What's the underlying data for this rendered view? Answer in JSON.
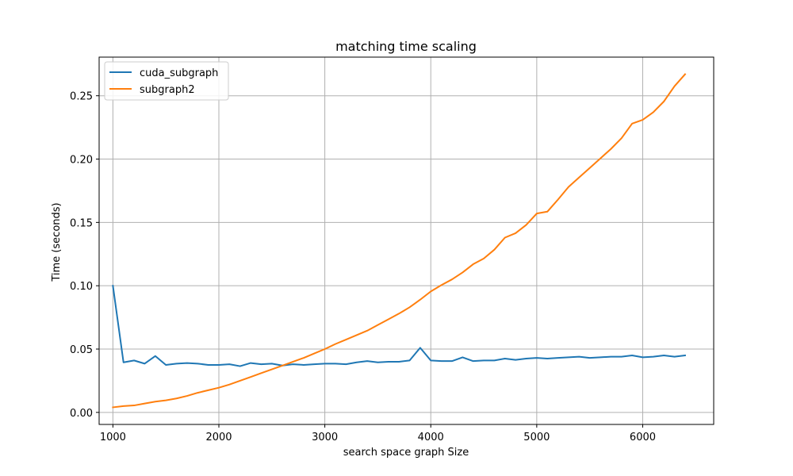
{
  "chart_data": {
    "type": "line",
    "title": "matching time scaling",
    "xlabel": "search space graph Size",
    "ylabel": "Time (seconds)",
    "xlim": [
      870,
      6670
    ],
    "ylim": [
      -0.0095,
      0.2805
    ],
    "xticks": [
      1000,
      2000,
      3000,
      4000,
      5000,
      6000
    ],
    "xtick_labels": [
      "1000",
      "2000",
      "3000",
      "4000",
      "5000",
      "6000"
    ],
    "yticks": [
      0.0,
      0.05,
      0.1,
      0.15,
      0.2,
      0.25
    ],
    "ytick_labels": [
      "0.00",
      "0.05",
      "0.10",
      "0.15",
      "0.20",
      "0.25"
    ],
    "grid": true,
    "legend_position": "top-left",
    "x": [
      1000,
      1100,
      1200,
      1300,
      1400,
      1500,
      1600,
      1700,
      1800,
      1900,
      2000,
      2100,
      2200,
      2300,
      2400,
      2500,
      2600,
      2700,
      2800,
      2900,
      3000,
      3100,
      3200,
      3300,
      3400,
      3500,
      3600,
      3700,
      3800,
      3900,
      4000,
      4100,
      4200,
      4300,
      4400,
      4500,
      4600,
      4700,
      4800,
      4900,
      5000,
      5100,
      5200,
      5300,
      5400,
      5500,
      5600,
      5700,
      5800,
      5900,
      6000,
      6100,
      6200,
      6300,
      6400
    ],
    "series": [
      {
        "name": "cuda_subgraph",
        "color": "#1f77b4",
        "values": [
          0.1,
          0.0395,
          0.041,
          0.0385,
          0.0445,
          0.0375,
          0.0385,
          0.039,
          0.0385,
          0.0375,
          0.0375,
          0.038,
          0.0365,
          0.039,
          0.038,
          0.0385,
          0.037,
          0.038,
          0.0375,
          0.038,
          0.0385,
          0.0385,
          0.038,
          0.0395,
          0.0405,
          0.0395,
          0.04,
          0.04,
          0.041,
          0.051,
          0.041,
          0.0405,
          0.0405,
          0.0435,
          0.0405,
          0.041,
          0.041,
          0.0425,
          0.0415,
          0.0425,
          0.043,
          0.0425,
          0.043,
          0.0435,
          0.044,
          0.043,
          0.0435,
          0.044,
          0.044,
          0.045,
          0.0435,
          0.044,
          0.045,
          0.044,
          0.045
        ]
      },
      {
        "name": "subgraph2",
        "color": "#ff7f0e",
        "values": [
          0.004,
          0.005,
          0.0055,
          0.007,
          0.0085,
          0.0095,
          0.011,
          0.013,
          0.0155,
          0.0175,
          0.0195,
          0.022,
          0.025,
          0.028,
          0.031,
          0.034,
          0.037,
          0.04,
          0.043,
          0.0465,
          0.05,
          0.054,
          0.0575,
          0.061,
          0.0645,
          0.069,
          0.0735,
          0.078,
          0.083,
          0.089,
          0.0955,
          0.1005,
          0.105,
          0.1105,
          0.117,
          0.1215,
          0.1285,
          0.138,
          0.1415,
          0.148,
          0.157,
          0.1585,
          0.168,
          0.178,
          0.1855,
          0.193,
          0.2005,
          0.208,
          0.2165,
          0.228,
          0.231,
          0.237,
          0.2455,
          0.2575,
          0.267
        ]
      }
    ]
  }
}
